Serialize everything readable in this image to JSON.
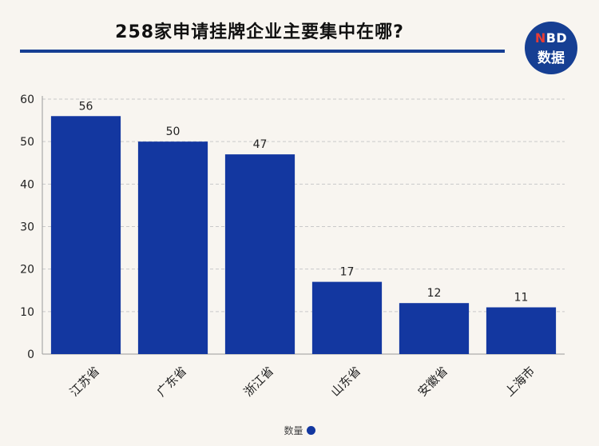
{
  "header": {
    "title": "258家申请挂牌企业主要集中在哪?",
    "logo_top_accent": "N",
    "logo_top_rest": "BD",
    "logo_bottom": "数据"
  },
  "colors": {
    "bar": "#1337a0",
    "title_rule": "#163f93",
    "background": "#f8f5f0"
  },
  "chart_data": {
    "type": "bar",
    "categories": [
      "江苏省",
      "广东省",
      "浙江省",
      "山东省",
      "安徽省",
      "上海市"
    ],
    "series": [
      {
        "name": "数量",
        "values": [
          56,
          50,
          47,
          17,
          12,
          11
        ]
      }
    ],
    "y_ticks": [
      0,
      10,
      20,
      30,
      40,
      50,
      60
    ],
    "ylim": [
      0,
      60
    ],
    "grid": true,
    "legend_position": "bottom",
    "data_labels": true
  }
}
